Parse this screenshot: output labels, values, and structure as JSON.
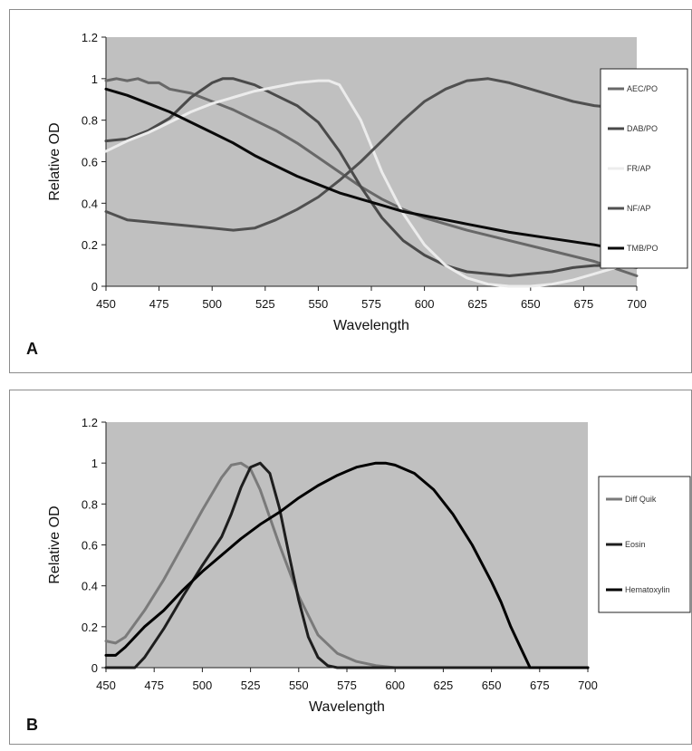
{
  "chart_data": [
    {
      "type": "line",
      "panel_label": "A",
      "xlabel": "Wavelength",
      "ylabel": "Relative OD",
      "xlim": [
        450,
        700
      ],
      "ylim": [
        0,
        1.2
      ],
      "xticks": [
        450,
        475,
        500,
        525,
        550,
        575,
        600,
        625,
        650,
        675,
        700
      ],
      "yticks": [
        0,
        0.2,
        0.4,
        0.6,
        0.8,
        1,
        1.2
      ],
      "plot_background": "#c0c0c0",
      "legend_position": "right",
      "series": [
        {
          "name": "AEC/PO",
          "color": "#686868",
          "x": [
            450,
            455,
            460,
            465,
            470,
            475,
            480,
            490,
            500,
            510,
            520,
            530,
            540,
            550,
            560,
            570,
            580,
            590,
            600,
            620,
            640,
            660,
            680,
            700
          ],
          "y": [
            0.99,
            1.0,
            0.99,
            1.0,
            0.98,
            0.98,
            0.95,
            0.93,
            0.89,
            0.85,
            0.8,
            0.75,
            0.69,
            0.62,
            0.55,
            0.48,
            0.42,
            0.37,
            0.33,
            0.27,
            0.22,
            0.17,
            0.12,
            0.05
          ]
        },
        {
          "name": "DAB/PO",
          "color": "#4a4a4a",
          "x": [
            450,
            460,
            470,
            480,
            490,
            500,
            505,
            510,
            520,
            530,
            540,
            550,
            560,
            570,
            580,
            590,
            600,
            610,
            620,
            630,
            640,
            650,
            660,
            670,
            680,
            690,
            700
          ],
          "y": [
            0.7,
            0.71,
            0.75,
            0.81,
            0.91,
            0.98,
            1.0,
            1.0,
            0.97,
            0.92,
            0.87,
            0.79,
            0.65,
            0.48,
            0.33,
            0.22,
            0.15,
            0.1,
            0.07,
            0.06,
            0.05,
            0.06,
            0.07,
            0.09,
            0.1,
            0.1,
            0.09
          ]
        },
        {
          "name": "FR/AP",
          "color": "#ececec",
          "x": [
            450,
            460,
            470,
            480,
            490,
            500,
            510,
            520,
            530,
            540,
            550,
            555,
            560,
            570,
            580,
            590,
            600,
            610,
            620,
            630,
            640,
            650,
            660,
            670,
            680,
            690,
            700
          ],
          "y": [
            0.65,
            0.7,
            0.74,
            0.79,
            0.84,
            0.88,
            0.91,
            0.94,
            0.96,
            0.98,
            0.99,
            0.99,
            0.97,
            0.8,
            0.55,
            0.35,
            0.2,
            0.1,
            0.04,
            0.01,
            0.0,
            0.0,
            0.01,
            0.03,
            0.06,
            0.09,
            0.13
          ]
        },
        {
          "name": "NF/AP",
          "color": "#505050",
          "x": [
            450,
            460,
            470,
            480,
            490,
            500,
            510,
            520,
            530,
            540,
            550,
            560,
            570,
            580,
            590,
            600,
            610,
            620,
            630,
            640,
            650,
            660,
            670,
            680,
            690,
            700
          ],
          "y": [
            0.36,
            0.32,
            0.31,
            0.3,
            0.29,
            0.28,
            0.27,
            0.28,
            0.32,
            0.37,
            0.43,
            0.51,
            0.6,
            0.7,
            0.8,
            0.89,
            0.95,
            0.99,
            1.0,
            0.98,
            0.95,
            0.92,
            0.89,
            0.87,
            0.86,
            0.78
          ]
        },
        {
          "name": "TMB/PO",
          "color": "#0a0a0a",
          "x": [
            450,
            460,
            470,
            480,
            490,
            500,
            510,
            520,
            530,
            540,
            550,
            560,
            570,
            580,
            590,
            600,
            620,
            640,
            660,
            680,
            700
          ],
          "y": [
            0.95,
            0.92,
            0.88,
            0.84,
            0.79,
            0.74,
            0.69,
            0.63,
            0.58,
            0.53,
            0.49,
            0.45,
            0.42,
            0.39,
            0.36,
            0.34,
            0.3,
            0.26,
            0.23,
            0.2,
            0.16
          ]
        }
      ]
    },
    {
      "type": "line",
      "panel_label": "B",
      "xlabel": "Wavelength",
      "ylabel": "Relative OD",
      "xlim": [
        450,
        700
      ],
      "ylim": [
        0,
        1.2
      ],
      "xticks": [
        450,
        475,
        500,
        525,
        550,
        575,
        600,
        625,
        650,
        675,
        700
      ],
      "yticks": [
        0,
        0.2,
        0.4,
        0.6,
        0.8,
        1,
        1.2
      ],
      "plot_background": "#c0c0c0",
      "legend_position": "right",
      "series": [
        {
          "name": "Diff Quik",
          "color": "#7a7a7a",
          "x": [
            450,
            455,
            460,
            470,
            480,
            490,
            500,
            510,
            515,
            520,
            525,
            530,
            540,
            550,
            560,
            570,
            580,
            590,
            600,
            625,
            650,
            675,
            700
          ],
          "y": [
            0.13,
            0.12,
            0.15,
            0.28,
            0.43,
            0.6,
            0.77,
            0.93,
            0.99,
            1.0,
            0.97,
            0.87,
            0.6,
            0.35,
            0.16,
            0.07,
            0.03,
            0.01,
            0.0,
            0.0,
            0.0,
            0.0,
            0.0
          ]
        },
        {
          "name": "Eosin",
          "color": "#1e1e1e",
          "x": [
            450,
            465,
            470,
            480,
            490,
            500,
            510,
            515,
            520,
            525,
            530,
            535,
            540,
            545,
            550,
            555,
            560,
            565,
            570,
            600,
            650,
            700
          ],
          "y": [
            0.0,
            0.0,
            0.05,
            0.19,
            0.35,
            0.5,
            0.64,
            0.75,
            0.88,
            0.98,
            1.0,
            0.95,
            0.78,
            0.55,
            0.33,
            0.15,
            0.05,
            0.01,
            0.0,
            0.0,
            0.0,
            0.0
          ]
        },
        {
          "name": "Hematoxylin",
          "color": "#000000",
          "x": [
            450,
            455,
            460,
            470,
            480,
            490,
            500,
            510,
            520,
            530,
            540,
            550,
            560,
            570,
            580,
            590,
            595,
            600,
            610,
            620,
            630,
            640,
            650,
            655,
            660,
            665,
            670,
            680,
            690,
            700
          ],
          "y": [
            0.06,
            0.06,
            0.1,
            0.2,
            0.28,
            0.38,
            0.47,
            0.55,
            0.63,
            0.7,
            0.76,
            0.83,
            0.89,
            0.94,
            0.98,
            1.0,
            1.0,
            0.99,
            0.95,
            0.87,
            0.75,
            0.6,
            0.42,
            0.32,
            0.2,
            0.1,
            0.0,
            0.0,
            0.0,
            0.0
          ]
        }
      ]
    }
  ]
}
